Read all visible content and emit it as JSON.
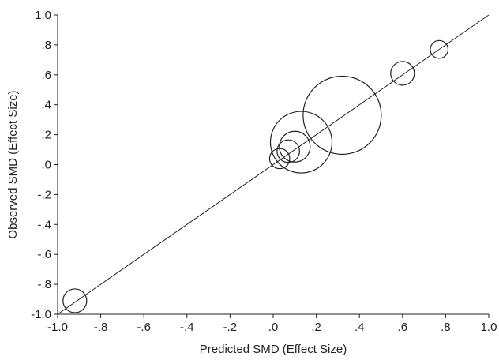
{
  "chart_data": {
    "type": "scatter",
    "xlabel": "Predicted SMD (Effect Size)",
    "ylabel": "Observed SMD (Effect Size)",
    "xlim": [
      -1.0,
      1.0
    ],
    "ylim": [
      -1.0,
      1.0
    ],
    "x_ticks": [
      {
        "value": -1.0,
        "label": "-1.0"
      },
      {
        "value": -0.8,
        "label": "-.8"
      },
      {
        "value": -0.6,
        "label": "-.6"
      },
      {
        "value": -0.4,
        "label": "-.4"
      },
      {
        "value": -0.2,
        "label": "-.2"
      },
      {
        "value": 0.0,
        "label": ".0"
      },
      {
        "value": 0.2,
        "label": ".2"
      },
      {
        "value": 0.4,
        "label": ".4"
      },
      {
        "value": 0.6,
        "label": ".6"
      },
      {
        "value": 0.8,
        "label": ".8"
      },
      {
        "value": 1.0,
        "label": "1.0"
      }
    ],
    "y_ticks": [
      {
        "value": 1.0,
        "label": "1.0"
      },
      {
        "value": 0.8,
        "label": ".8"
      },
      {
        "value": 0.6,
        "label": ".6"
      },
      {
        "value": 0.4,
        "label": ".4"
      },
      {
        "value": 0.2,
        "label": ".2"
      },
      {
        "value": 0.0,
        "label": ".0"
      },
      {
        "value": -0.2,
        "label": "-.2"
      },
      {
        "value": -0.4,
        "label": "-.4"
      },
      {
        "value": -0.6,
        "label": "-.6"
      },
      {
        "value": -0.8,
        "label": "-.8"
      },
      {
        "value": -1.0,
        "label": "-1.0"
      }
    ],
    "reference_line": {
      "from": [
        -1.0,
        -1.0
      ],
      "to": [
        1.0,
        1.0
      ]
    },
    "grid": false,
    "points": [
      {
        "x": -0.92,
        "y": -0.91,
        "weight": 1.0
      },
      {
        "x": 0.03,
        "y": 0.04,
        "weight": 0.85
      },
      {
        "x": 0.07,
        "y": 0.09,
        "weight": 0.95
      },
      {
        "x": 0.1,
        "y": 0.12,
        "weight": 1.3
      },
      {
        "x": 0.13,
        "y": 0.15,
        "weight": 2.6
      },
      {
        "x": 0.32,
        "y": 0.33,
        "weight": 3.3
      },
      {
        "x": 0.6,
        "y": 0.61,
        "weight": 1.0
      },
      {
        "x": 0.77,
        "y": 0.77,
        "weight": 0.75
      }
    ]
  }
}
